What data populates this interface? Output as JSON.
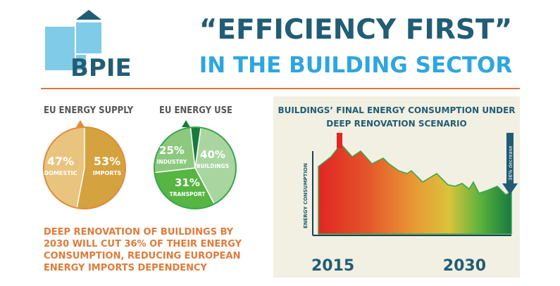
{
  "logo": {
    "text": "BPIE",
    "color": "#215d74",
    "accent": "#7fcbe8"
  },
  "header": {
    "title_main": "“EFFICIENCY FIRST”",
    "title_sub": "IN THE BUILDING SECTOR",
    "title_main_color": "#215d74",
    "title_sub_color": "#2ea6df",
    "divider_color": "#d27a3d"
  },
  "supply_pie": {
    "title": "EU ENERGY SUPPLY",
    "slices": [
      {
        "pct": "47%",
        "label": "DOMESTIC",
        "value": 47,
        "color": "#e9c47f"
      },
      {
        "pct": "53%",
        "label": "IMPORTS",
        "value": 53,
        "color": "#d4a23e"
      }
    ],
    "outline_color": "#e08b3a"
  },
  "use_pie": {
    "title": "EU ENERGY USE",
    "slices": [
      {
        "pct": "40%",
        "label": "BUILDINGS",
        "value": 40,
        "color": "#a9d6a0"
      },
      {
        "pct": "31%",
        "label": "TRANSPORT",
        "value": 31,
        "color": "#56b543"
      },
      {
        "pct": "25%",
        "label": "INDUSTRY",
        "value": 25,
        "color": "#8cc97f"
      },
      {
        "value": 4,
        "color": "#1a7a3e"
      }
    ],
    "outline_color": "#3aa54a"
  },
  "chart": {
    "title_line1": "BUILDINGS’ FINAL ENERGY CONSUMPTION UNDER",
    "title_line2": "DEEP RENOVATION SCENARIO",
    "y_axis_label": "ENERGY CONSUMPTION",
    "x_start": "2015",
    "x_end": "2030",
    "decrease_label": "36% decrease",
    "panel_color": "#f1f0e3",
    "arrow_color": "#215d74"
  },
  "footer_text": {
    "lines": [
      "DEEP RENOVATION OF BUILDINGS BY",
      "2030 WILL CUT 36% OF THEIR ENERGY",
      "CONSUMPTION, REDUCING EUROPEAN",
      "ENERGY IMPORTS DEPENDENCY"
    ],
    "color": "#e07b39"
  }
}
